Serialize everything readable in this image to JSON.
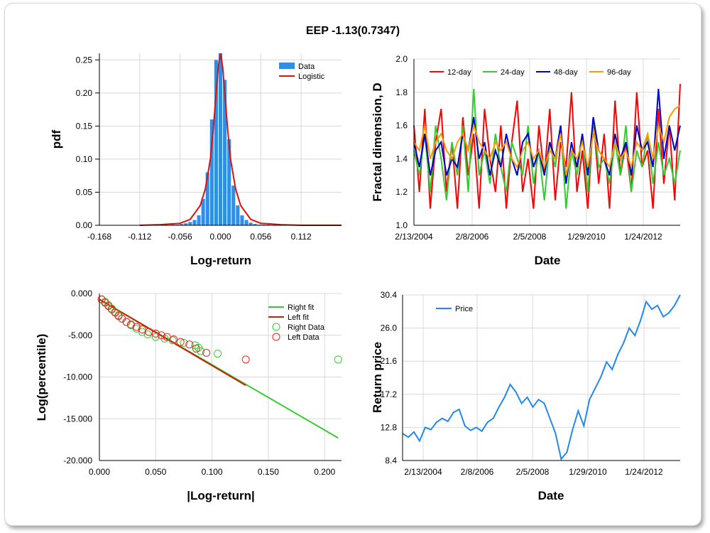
{
  "title": "EEP -1.13(0.7347)",
  "chart_data": [
    {
      "id": "pdf",
      "type": "bar",
      "xlabel": "Log-return",
      "ylabel": "pdf",
      "xlim": [
        -0.168,
        0.168
      ],
      "ylim": [
        0,
        0.26
      ],
      "xticks": [
        "-0.168",
        "-0.112",
        "-0.056",
        "0.000",
        "0.056",
        "0.112"
      ],
      "yticks": [
        "0.00",
        "0.05",
        "0.10",
        "0.15",
        "0.20",
        "0.25"
      ],
      "legend": [
        "Data",
        "Logistic"
      ],
      "legend_position": "top-right",
      "series": [
        {
          "name": "Data",
          "x": [
            -0.066,
            -0.06,
            -0.054,
            -0.048,
            -0.042,
            -0.036,
            -0.03,
            -0.024,
            -0.018,
            -0.012,
            -0.006,
            0.0,
            0.006,
            0.012,
            0.018,
            0.024,
            0.03,
            0.036,
            0.042,
            0.048,
            0.054,
            0.06,
            0.066
          ],
          "values": [
            0.001,
            0.001,
            0.002,
            0.003,
            0.005,
            0.008,
            0.015,
            0.04,
            0.08,
            0.16,
            0.25,
            0.26,
            0.22,
            0.13,
            0.06,
            0.03,
            0.015,
            0.008,
            0.004,
            0.002,
            0.001,
            0.001,
            0.001
          ]
        },
        {
          "name": "Logistic",
          "x": [
            -0.112,
            -0.084,
            -0.056,
            -0.042,
            -0.028,
            -0.021,
            -0.014,
            -0.01,
            -0.006,
            -0.003,
            0.0,
            0.003,
            0.006,
            0.01,
            0.014,
            0.021,
            0.028,
            0.042,
            0.056,
            0.084,
            0.112,
            0.168
          ],
          "values": [
            0.0,
            0.001,
            0.003,
            0.009,
            0.03,
            0.055,
            0.1,
            0.145,
            0.2,
            0.24,
            0.26,
            0.24,
            0.2,
            0.145,
            0.1,
            0.055,
            0.03,
            0.009,
            0.003,
            0.001,
            0.0,
            0.0
          ]
        }
      ]
    },
    {
      "id": "fractal",
      "type": "line",
      "xlabel": "Date",
      "ylabel": "Fractal dimension, D",
      "ylim": [
        1.0,
        2.0
      ],
      "xticks": [
        "2/13/2004",
        "2/8/2006",
        "2/5/2008",
        "1/29/2010",
        "1/24/2012"
      ],
      "yticks": [
        "1.0",
        "1.2",
        "1.4",
        "1.6",
        "1.8",
        "2.0"
      ],
      "legend": [
        "12-day",
        "24-day",
        "48-day",
        "96-day"
      ],
      "legend_position": "top-left",
      "series": [
        {
          "name": "12-day",
          "color": "#ff0000",
          "values": [
            1.6,
            1.2,
            1.7,
            1.1,
            1.5,
            1.7,
            1.2,
            1.5,
            1.1,
            1.65,
            1.3,
            1.55,
            1.1,
            1.7,
            1.4,
            1.2,
            1.6,
            1.1,
            1.5,
            1.75,
            1.2,
            1.4,
            1.1,
            1.6,
            1.3,
            1.7,
            1.15,
            1.5,
            1.35,
            1.8,
            1.2,
            1.45,
            1.1,
            1.65,
            1.25,
            1.55,
            1.1,
            1.75,
            1.3,
            1.5,
            1.2,
            1.8,
            1.35,
            1.45,
            1.1,
            1.7,
            1.25,
            1.6,
            1.15,
            1.85
          ]
        },
        {
          "name": "24-day",
          "color": "#33cc33",
          "values": [
            1.45,
            1.3,
            1.55,
            1.2,
            1.6,
            1.4,
            1.15,
            1.5,
            1.3,
            1.6,
            1.2,
            1.82,
            1.3,
            1.45,
            1.25,
            1.55,
            1.35,
            1.2,
            1.5,
            1.4,
            1.3,
            1.6,
            1.25,
            1.45,
            1.15,
            1.5,
            1.35,
            1.6,
            1.1,
            1.45,
            1.3,
            1.55,
            1.2,
            1.65,
            1.35,
            1.4,
            1.25,
            1.5,
            1.3,
            1.6,
            1.2,
            1.45,
            1.35,
            1.55,
            1.25,
            1.5,
            1.3,
            1.4,
            1.25,
            1.45
          ]
        },
        {
          "name": "48-day",
          "color": "#0000cc",
          "values": [
            1.5,
            1.35,
            1.55,
            1.3,
            1.45,
            1.5,
            1.3,
            1.4,
            1.35,
            1.55,
            1.45,
            1.65,
            1.4,
            1.5,
            1.3,
            1.45,
            1.35,
            1.55,
            1.4,
            1.3,
            1.5,
            1.55,
            1.35,
            1.45,
            1.3,
            1.5,
            1.4,
            1.6,
            1.25,
            1.5,
            1.35,
            1.55,
            1.3,
            1.65,
            1.45,
            1.4,
            1.3,
            1.55,
            1.4,
            1.5,
            1.3,
            1.6,
            1.45,
            1.5,
            1.35,
            1.82,
            1.4,
            1.6,
            1.45,
            1.6
          ]
        },
        {
          "name": "96-day",
          "color": "#ff9900",
          "values": [
            1.5,
            1.45,
            1.6,
            1.4,
            1.5,
            1.55,
            1.45,
            1.4,
            1.5,
            1.55,
            1.45,
            1.6,
            1.5,
            1.45,
            1.4,
            1.5,
            1.45,
            1.5,
            1.4,
            1.35,
            1.45,
            1.5,
            1.4,
            1.45,
            1.35,
            1.45,
            1.4,
            1.55,
            1.3,
            1.45,
            1.4,
            1.5,
            1.35,
            1.55,
            1.45,
            1.4,
            1.35,
            1.5,
            1.4,
            1.45,
            1.35,
            1.5,
            1.45,
            1.55,
            1.4,
            1.6,
            1.5,
            1.65,
            1.7,
            1.72
          ]
        }
      ]
    },
    {
      "id": "tails",
      "type": "scatter",
      "xlabel": "|Log-return|",
      "ylabel": "Log(percentile)",
      "xlim": [
        0,
        0.215
      ],
      "ylim": [
        -20,
        0
      ],
      "xticks": [
        "0.000",
        "0.050",
        "0.100",
        "0.150",
        "0.200"
      ],
      "yticks": [
        "0.000",
        "-5.000",
        "-10.000",
        "-15.000",
        "-20.000"
      ],
      "legend": [
        "Right fit",
        "Left fit",
        "Right Data",
        "Left Data"
      ],
      "legend_position": "top-right",
      "series": [
        {
          "name": "Right fit",
          "color": "#33cc33",
          "x": [
            0.0,
            0.212
          ],
          "y": [
            -0.7,
            -17.3
          ]
        },
        {
          "name": "Left fit",
          "color": "#cc2200",
          "x": [
            0.0,
            0.13
          ],
          "y": [
            -0.7,
            -11.0
          ]
        },
        {
          "name": "Right Data",
          "color": "#33cc33",
          "x": [
            0.002,
            0.005,
            0.008,
            0.011,
            0.014,
            0.017,
            0.02,
            0.024,
            0.028,
            0.033,
            0.038,
            0.043,
            0.05,
            0.058,
            0.065,
            0.075,
            0.085,
            0.088,
            0.09,
            0.105,
            0.212
          ],
          "y": [
            -0.7,
            -1.0,
            -1.4,
            -1.8,
            -2.2,
            -2.6,
            -3.0,
            -3.4,
            -3.8,
            -4.2,
            -4.6,
            -4.9,
            -5.2,
            -5.4,
            -5.6,
            -5.9,
            -6.2,
            -6.5,
            -6.9,
            -7.2,
            -7.9
          ]
        },
        {
          "name": "Left Data",
          "color": "#ee2222",
          "x": [
            0.002,
            0.005,
            0.008,
            0.011,
            0.014,
            0.017,
            0.02,
            0.024,
            0.028,
            0.033,
            0.038,
            0.044,
            0.05,
            0.055,
            0.06,
            0.066,
            0.072,
            0.08,
            0.086,
            0.095,
            0.13
          ],
          "y": [
            -0.7,
            -1.1,
            -1.5,
            -1.9,
            -2.3,
            -2.7,
            -3.0,
            -3.4,
            -3.7,
            -4.0,
            -4.3,
            -4.6,
            -4.8,
            -5.0,
            -5.2,
            -5.5,
            -5.8,
            -6.1,
            -6.6,
            -7.1,
            -7.9
          ]
        }
      ]
    },
    {
      "id": "price",
      "type": "line",
      "xlabel": "Date",
      "ylabel": "Return price",
      "ylim": [
        8.4,
        30.4
      ],
      "xticks": [
        "2/13/2004",
        "2/8/2006",
        "2/5/2008",
        "1/29/2010",
        "1/24/2012"
      ],
      "yticks": [
        "8.4",
        "12.8",
        "17.2",
        "21.6",
        "26.0",
        "30.4"
      ],
      "legend": [
        "Price"
      ],
      "legend_position": "top-left",
      "series": [
        {
          "name": "Price",
          "color": "#2288ee",
          "values": [
            12.0,
            11.5,
            12.2,
            11.0,
            12.8,
            12.5,
            13.5,
            14.0,
            13.6,
            14.8,
            15.2,
            13.0,
            12.4,
            12.8,
            12.3,
            13.5,
            14.0,
            15.5,
            16.8,
            18.5,
            17.5,
            16.0,
            16.8,
            15.5,
            16.5,
            16.0,
            14.0,
            12.0,
            8.6,
            9.5,
            12.5,
            15.0,
            13.0,
            16.5,
            18.0,
            19.5,
            21.5,
            20.5,
            22.5,
            24.0,
            26.0,
            25.0,
            27.0,
            29.5,
            28.5,
            29.0,
            27.5,
            28.0,
            29.0,
            30.4
          ]
        }
      ]
    }
  ]
}
